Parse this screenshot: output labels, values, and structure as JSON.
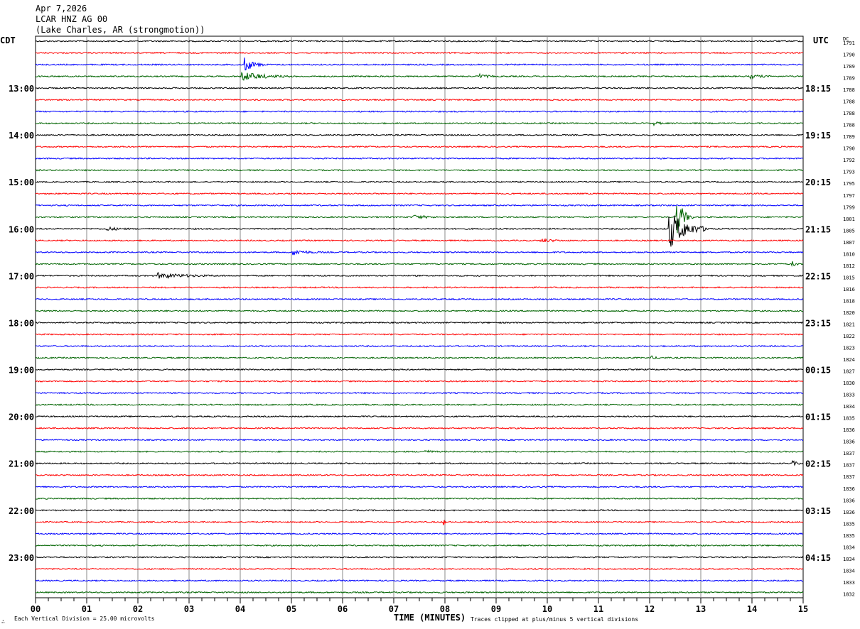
{
  "header": {
    "date": "Apr 7,2026",
    "station": "LCAR HNZ AG 00",
    "location": "(Lake Charles, AR (strongmotion))",
    "left_zone": "CDT",
    "right_zone": "UTC",
    "dc_label": "DC"
  },
  "footer": {
    "scale_text": "Each Vertical Division =   25.00 microvolts",
    "xlabel": "TIME (MINUTES)",
    "clip_text": "Traces clipped at plus/minus 5 vertical divisions",
    "corner_mark": "∴"
  },
  "chart_data": {
    "type": "line",
    "title": "LCAR HNZ AG 00 helicorder",
    "xlabel": "TIME (MINUTES)",
    "xlim": [
      0,
      15
    ],
    "x_ticks": [
      "00",
      "01",
      "02",
      "03",
      "04",
      "05",
      "06",
      "07",
      "08",
      "09",
      "10",
      "11",
      "12",
      "13",
      "14",
      "15"
    ],
    "trace_colors": [
      "#000000",
      "#ff0000",
      "#0000ff",
      "#006400"
    ],
    "trace_count": 48,
    "left_labels": [
      {
        "trace": 4,
        "text": "13:00"
      },
      {
        "trace": 8,
        "text": "14:00"
      },
      {
        "trace": 12,
        "text": "15:00"
      },
      {
        "trace": 16,
        "text": "16:00"
      },
      {
        "trace": 20,
        "text": "17:00"
      },
      {
        "trace": 24,
        "text": "18:00"
      },
      {
        "trace": 28,
        "text": "19:00"
      },
      {
        "trace": 32,
        "text": "20:00"
      },
      {
        "trace": 36,
        "text": "21:00"
      },
      {
        "trace": 40,
        "text": "22:00"
      },
      {
        "trace": 44,
        "text": "23:00"
      }
    ],
    "right_labels": [
      {
        "trace": 4,
        "text": "18:15"
      },
      {
        "trace": 8,
        "text": "19:15"
      },
      {
        "trace": 12,
        "text": "20:15"
      },
      {
        "trace": 16,
        "text": "21:15"
      },
      {
        "trace": 20,
        "text": "22:15"
      },
      {
        "trace": 24,
        "text": "23:15"
      },
      {
        "trace": 28,
        "text": "00:15"
      },
      {
        "trace": 32,
        "text": "01:15"
      },
      {
        "trace": 36,
        "text": "02:15"
      },
      {
        "trace": 40,
        "text": "03:15"
      },
      {
        "trace": 44,
        "text": "04:15"
      }
    ],
    "dc_values": [
      "1791",
      "1790",
      "1789",
      "1789",
      "1788",
      "1788",
      "1788",
      "1788",
      "1789",
      "1790",
      "1792",
      "1793",
      "1795",
      "1797",
      "1799",
      "1801",
      "1805",
      "1807",
      "1810",
      "1812",
      "1815",
      "1816",
      "1818",
      "1820",
      "1821",
      "1822",
      "1823",
      "1824",
      "1827",
      "1830",
      "1833",
      "1834",
      "1835",
      "1836",
      "1836",
      "1837",
      "1837",
      "1837",
      "1836",
      "1836",
      "1836",
      "1835",
      "1835",
      "1834",
      "1834",
      "1834",
      "1833",
      "1832"
    ],
    "events": [
      {
        "trace": 2,
        "minute": 4.1,
        "amplitude": 1.6,
        "duration": 0.4
      },
      {
        "trace": 3,
        "minute": 4.05,
        "amplitude": 1.0,
        "duration": 1.0
      },
      {
        "trace": 3,
        "minute": 8.7,
        "amplitude": 0.5,
        "duration": 0.3
      },
      {
        "trace": 3,
        "minute": 14.0,
        "amplitude": 0.4,
        "duration": 0.5
      },
      {
        "trace": 15,
        "minute": 7.4,
        "amplitude": 0.4,
        "duration": 0.6
      },
      {
        "trace": 15,
        "minute": 12.55,
        "amplitude": 4.5,
        "duration": 0.3
      },
      {
        "trace": 16,
        "minute": 12.4,
        "amplitude": 4.5,
        "duration": 0.8
      },
      {
        "trace": 16,
        "minute": 1.4,
        "amplitude": 0.4,
        "duration": 0.5
      },
      {
        "trace": 17,
        "minute": 9.9,
        "amplitude": 0.4,
        "duration": 0.5
      },
      {
        "trace": 18,
        "minute": 5.05,
        "amplitude": 0.6,
        "duration": 0.6
      },
      {
        "trace": 19,
        "minute": 14.8,
        "amplitude": 0.5,
        "duration": 0.2
      },
      {
        "trace": 20,
        "minute": 2.4,
        "amplitude": 0.6,
        "duration": 1.3
      },
      {
        "trace": 7,
        "minute": 12.1,
        "amplitude": 0.4,
        "duration": 0.2
      },
      {
        "trace": 27,
        "minute": 12.05,
        "amplitude": 0.3,
        "duration": 0.2
      },
      {
        "trace": 35,
        "minute": 7.6,
        "amplitude": 0.4,
        "duration": 0.3
      },
      {
        "trace": 36,
        "minute": 14.8,
        "amplitude": 0.5,
        "duration": 0.2
      },
      {
        "trace": 41,
        "minute": 8.0,
        "amplitude": 0.6,
        "duration": 0.05
      }
    ]
  }
}
